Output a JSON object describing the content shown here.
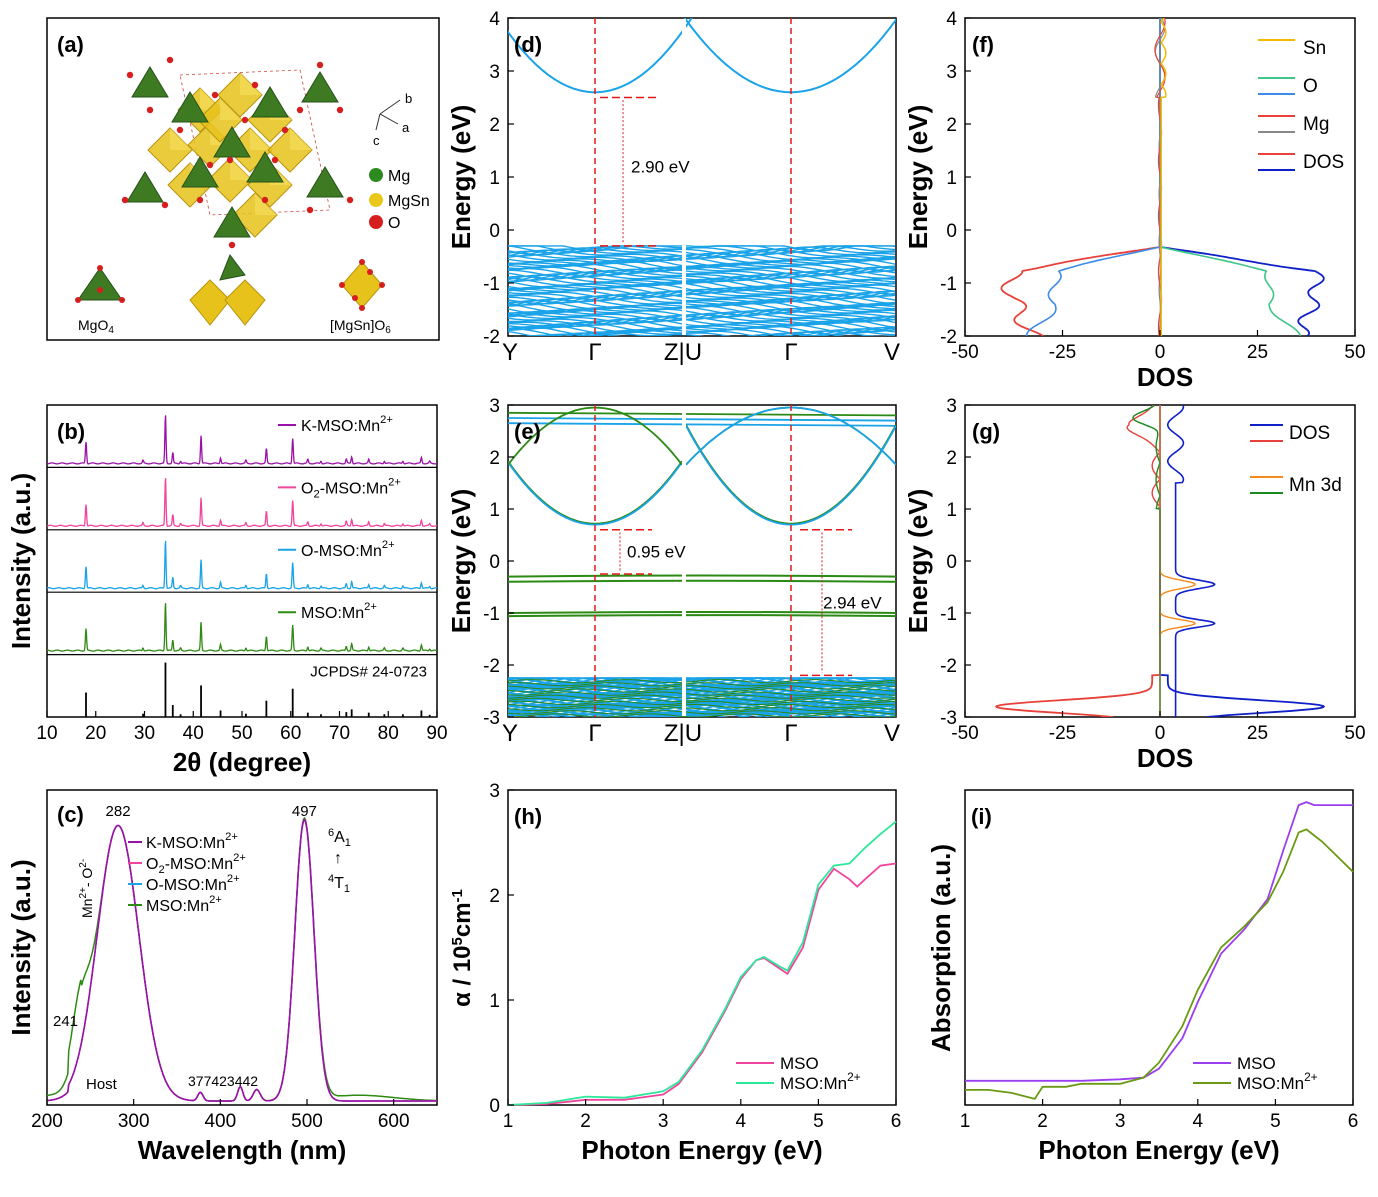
{
  "figure": {
    "description_none": ""
  },
  "panels": {
    "a": {
      "label": "(a)",
      "legend": [
        {
          "name": "Mg",
          "color": "#2d8a1e"
        },
        {
          "name": "MgSn",
          "color": "#e9c81b"
        },
        {
          "name": "O",
          "color": "#d61e1e"
        }
      ],
      "axes_labels": [
        "b",
        "a",
        "c"
      ],
      "unit_labels": [
        "MgO4",
        "[MgSn]O6"
      ]
    },
    "b": {
      "label": "(b)"
    },
    "c": {
      "label": "(c)"
    },
    "d": {
      "label": "(d)"
    },
    "e": {
      "label": "(e)"
    },
    "f": {
      "label": "(f)"
    },
    "g": {
      "label": "(g)"
    },
    "h": {
      "label": "(h)"
    },
    "i": {
      "label": "(i)"
    }
  },
  "chart_data": [
    {
      "id": "b",
      "type": "line",
      "xlabel": "2θ (degree)",
      "ylabel": "Intensity (a.u.)",
      "xlim": [
        10,
        90
      ],
      "xticks": [
        10,
        20,
        30,
        40,
        50,
        60,
        70,
        80,
        90
      ],
      "series": [
        {
          "name": "K-MSO:Mn2+",
          "color": "#9a10a8"
        },
        {
          "name": "O2-MSO:Mn2+",
          "color": "#f0449c"
        },
        {
          "name": "O-MSO:Mn2+",
          "color": "#1aa3e8"
        },
        {
          "name": "MSO:Mn2+",
          "color": "#2f8a14"
        },
        {
          "name": "JCPDS# 24-0723",
          "color": "#000000"
        }
      ],
      "peaks": [
        {
          "x": 18.0,
          "h": 0.45
        },
        {
          "x": 29.7,
          "h": 0.06
        },
        {
          "x": 34.3,
          "h": 1.0
        },
        {
          "x": 35.8,
          "h": 0.22
        },
        {
          "x": 37.4,
          "h": 0.05
        },
        {
          "x": 41.6,
          "h": 0.58
        },
        {
          "x": 45.6,
          "h": 0.12
        },
        {
          "x": 50.8,
          "h": 0.06
        },
        {
          "x": 55.0,
          "h": 0.3
        },
        {
          "x": 60.4,
          "h": 0.52
        },
        {
          "x": 63.5,
          "h": 0.08
        },
        {
          "x": 66.2,
          "h": 0.05
        },
        {
          "x": 71.4,
          "h": 0.09
        },
        {
          "x": 72.5,
          "h": 0.14
        },
        {
          "x": 76.0,
          "h": 0.08
        },
        {
          "x": 79.2,
          "h": 0.05
        },
        {
          "x": 83.0,
          "h": 0.05
        },
        {
          "x": 86.8,
          "h": 0.12
        },
        {
          "x": 88.5,
          "h": 0.04
        }
      ]
    },
    {
      "id": "c",
      "type": "line",
      "xlabel": "Wavelength (nm)",
      "ylabel": "Intensity (a.u.)",
      "xlim": [
        200,
        650
      ],
      "xticks": [
        200,
        300,
        400,
        500,
        600
      ],
      "series": [
        {
          "name": "K-MSO:Mn2+",
          "color": "#9a10a8"
        },
        {
          "name": "O2-MSO:Mn2+",
          "color": "#f0449c"
        },
        {
          "name": "O-MSO:Mn2+",
          "color": "#1aa3e8"
        },
        {
          "name": "MSO:Mn2+",
          "color": "#2f8a14"
        }
      ],
      "annotations": [
        "282",
        "497",
        "241",
        "Host",
        "377",
        "423",
        "442",
        "Mn2+-O2-",
        "6A1",
        "4T1"
      ]
    },
    {
      "id": "d",
      "type": "line",
      "ylabel": "Energy (eV)",
      "ylim": [
        -2,
        4
      ],
      "yticks": [
        -2,
        -1,
        0,
        1,
        2,
        3,
        4
      ],
      "xticklabels": [
        "Y",
        "Γ",
        "Z|U",
        "Γ",
        "V"
      ],
      "annotation": "2.90 eV",
      "cbm": 2.6,
      "vbm": -0.3
    },
    {
      "id": "e",
      "type": "line",
      "ylabel": "Energy (eV)",
      "ylim": [
        -3,
        3
      ],
      "yticks": [
        -3,
        -2,
        -1,
        0,
        1,
        2,
        3
      ],
      "xticklabels": [
        "Y",
        "Γ",
        "Z|U",
        "Γ",
        "V"
      ],
      "annotations": [
        "0.95 eV",
        "2.94 eV"
      ],
      "cbm": 0.7,
      "impurity_levels": [
        -0.3,
        -0.4,
        -1.0,
        -1.06
      ],
      "vbm": -2.25
    },
    {
      "id": "f",
      "type": "line",
      "xlabel": "DOS",
      "ylabel": "Energy (eV)",
      "xlim": [
        -50,
        50
      ],
      "ylim": [
        -2,
        4
      ],
      "xticks": [
        -50,
        -25,
        0,
        25,
        50
      ],
      "yticks": [
        -2,
        -1,
        0,
        1,
        2,
        3,
        4
      ],
      "series": [
        {
          "name": "Sn",
          "color": "#f5b800"
        },
        {
          "name": "O",
          "color": "#3fc48a"
        },
        {
          "name": "O",
          "color": "#3d8be8"
        },
        {
          "name": "Mg",
          "color": "#e8413a"
        },
        {
          "name": "Mg",
          "color": "#888888"
        },
        {
          "name": "DOS",
          "color": "#e8413a"
        },
        {
          "name": "DOS",
          "color": "#1020c8"
        }
      ]
    },
    {
      "id": "g",
      "type": "line",
      "xlabel": "DOS",
      "ylabel": "Energy (eV)",
      "xlim": [
        -50,
        50
      ],
      "ylim": [
        -3,
        3
      ],
      "xticks": [
        -50,
        -25,
        0,
        25,
        50
      ],
      "yticks": [
        -3,
        -2,
        -1,
        0,
        1,
        2,
        3
      ],
      "series": [
        {
          "name": "DOS",
          "color": "#1020c8"
        },
        {
          "name": "DOS",
          "color": "#e8413a"
        },
        {
          "name": "Mn 3d",
          "color": "#f58a1e"
        },
        {
          "name": "Mn 3d",
          "color": "#1a8a20"
        }
      ]
    },
    {
      "id": "h",
      "type": "line",
      "xlabel": "Photon Energy (eV)",
      "ylabel": "α / 10 5cm-1",
      "xlim": [
        1,
        6
      ],
      "ylim": [
        0,
        3
      ],
      "xticks": [
        1,
        2,
        3,
        4,
        5,
        6
      ],
      "yticks": [
        0,
        1,
        2,
        3
      ],
      "series": [
        {
          "name": "MSO",
          "color": "#f0449c",
          "x": [
            1,
            1.5,
            2,
            2.5,
            3,
            3.2,
            3.5,
            3.8,
            4.0,
            4.2,
            4.3,
            4.5,
            4.6,
            4.8,
            5.0,
            5.2,
            5.4,
            5.5,
            5.6,
            5.8,
            6.0
          ],
          "y": [
            0,
            0.01,
            0.05,
            0.05,
            0.1,
            0.2,
            0.5,
            0.9,
            1.2,
            1.38,
            1.4,
            1.3,
            1.25,
            1.5,
            2.05,
            2.25,
            2.15,
            2.08,
            2.15,
            2.28,
            2.3
          ]
        },
        {
          "name": "MSO:Mn2+",
          "color": "#2ee89a",
          "x": [
            1,
            1.5,
            2,
            2.5,
            3,
            3.2,
            3.5,
            3.8,
            4.0,
            4.2,
            4.3,
            4.5,
            4.6,
            4.8,
            5.0,
            5.2,
            5.4,
            5.6,
            5.8,
            6.0
          ],
          "y": [
            0,
            0.02,
            0.08,
            0.07,
            0.13,
            0.22,
            0.52,
            0.92,
            1.22,
            1.38,
            1.41,
            1.32,
            1.28,
            1.55,
            2.1,
            2.28,
            2.3,
            2.45,
            2.58,
            2.7
          ]
        }
      ]
    },
    {
      "id": "i",
      "type": "line",
      "xlabel": "Photon Energy (eV)",
      "ylabel": "Absorption (a.u.)",
      "xlim": [
        1,
        6
      ],
      "xticks": [
        1,
        2,
        3,
        4,
        5,
        6
      ],
      "series": [
        {
          "name": "MSO",
          "color": "#9a3ef0",
          "x": [
            1,
            1.5,
            2,
            2.5,
            3,
            3.3,
            3.5,
            3.8,
            4.0,
            4.3,
            4.6,
            4.9,
            5.1,
            5.3,
            5.4,
            5.5,
            5.8,
            6.0
          ],
          "y": [
            0.06,
            0.06,
            0.06,
            0.06,
            0.065,
            0.07,
            0.1,
            0.2,
            0.32,
            0.48,
            0.56,
            0.66,
            0.82,
            0.97,
            0.98,
            0.97,
            0.97,
            0.97
          ]
        },
        {
          "name": "MSO:Mn2+",
          "color": "#6a9a14",
          "x": [
            1,
            1.3,
            1.6,
            1.9,
            2.0,
            2.3,
            2.5,
            2.8,
            3.0,
            3.3,
            3.5,
            3.8,
            4.0,
            4.3,
            4.6,
            4.9,
            5.1,
            5.3,
            5.4,
            5.6,
            5.8,
            6.0
          ],
          "y": [
            0.03,
            0.03,
            0.02,
            0.0,
            0.04,
            0.04,
            0.05,
            0.05,
            0.05,
            0.07,
            0.12,
            0.24,
            0.36,
            0.5,
            0.57,
            0.65,
            0.75,
            0.88,
            0.89,
            0.85,
            0.8,
            0.75
          ]
        }
      ]
    }
  ]
}
